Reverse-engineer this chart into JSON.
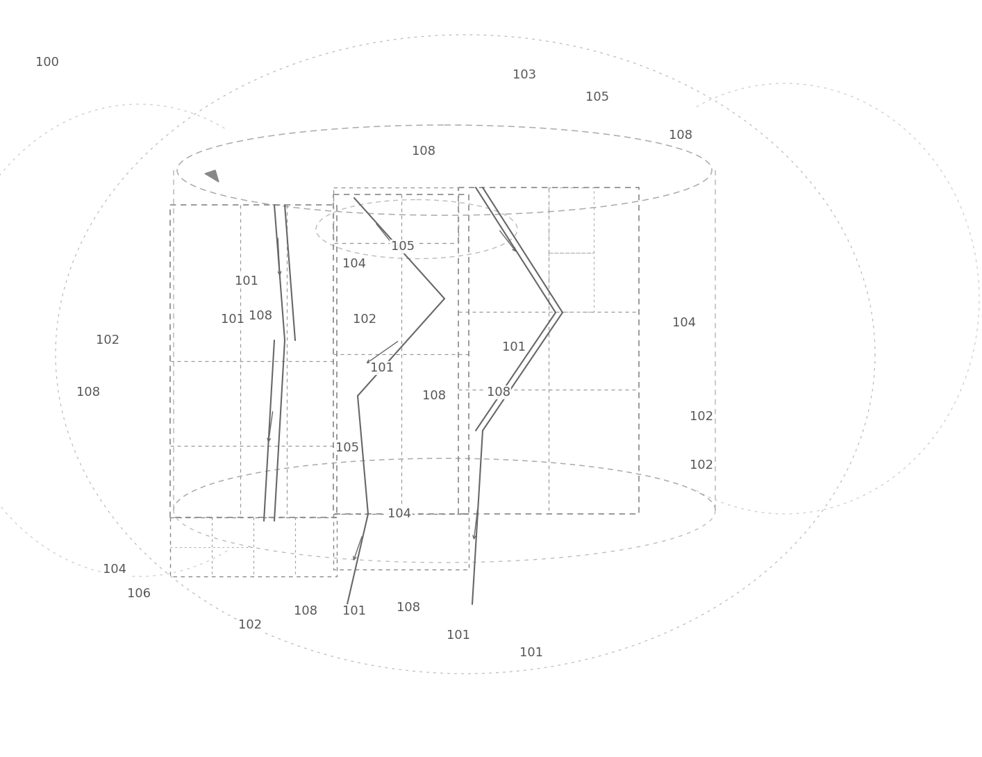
{
  "background_color": "#ffffff",
  "fig_width": 14.14,
  "fig_height": 10.9,
  "line_color_dark": "#888888",
  "line_color_grid": "#999999",
  "wire_color": "#666666",
  "text_color": "#555555",
  "label_fontsize": 13
}
